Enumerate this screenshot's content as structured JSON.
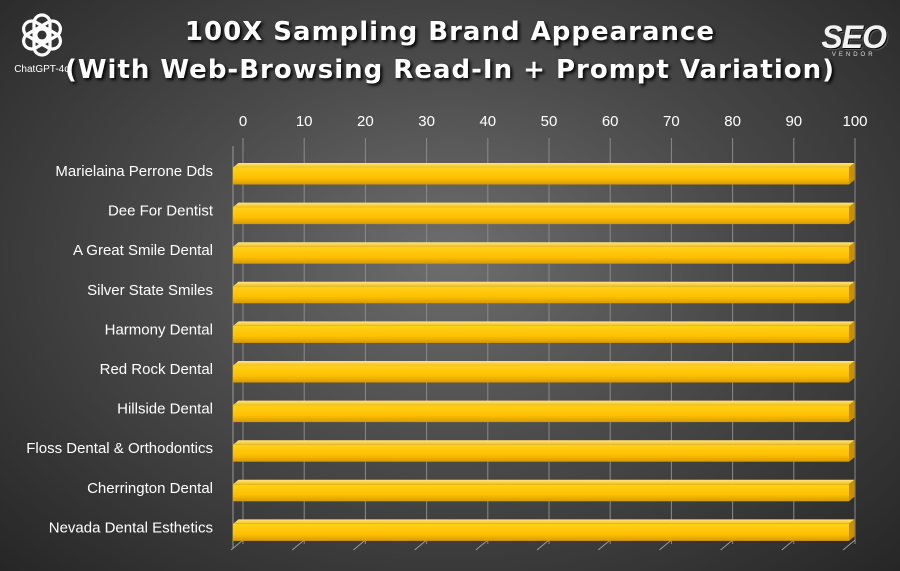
{
  "header": {
    "title_line1": "100X Sampling Brand Appearance",
    "title_line2": "(With Web-Browsing Read-In + Prompt Variation)"
  },
  "logo": {
    "icon": "openai-knot-icon",
    "label": "ChatGPT-4o"
  },
  "brand": {
    "name": "SEO",
    "sub": "VENDOR"
  },
  "chart_data": {
    "type": "bar",
    "orientation": "horizontal",
    "title": "100X Sampling Brand Appearance (With Web-Browsing Read-In + Prompt Variation)",
    "categories": [
      "Marielaina Perrone Dds",
      "Dee For Dentist",
      "A Great Smile Dental",
      "Silver State Smiles",
      "Harmony Dental",
      "Red Rock Dental",
      "Hillside Dental",
      "Floss Dental & Orthodontics",
      "Cherrington Dental",
      "Nevada Dental Esthetics"
    ],
    "values": [
      100,
      100,
      100,
      100,
      100,
      100,
      100,
      100,
      100,
      100
    ],
    "xlim": [
      0,
      100
    ],
    "x_ticks": [
      0,
      10,
      20,
      30,
      40,
      50,
      60,
      70,
      80,
      90,
      100
    ],
    "x_axis_position": "top",
    "grid": true,
    "bar_color": "#ffc000",
    "legend": "none"
  }
}
